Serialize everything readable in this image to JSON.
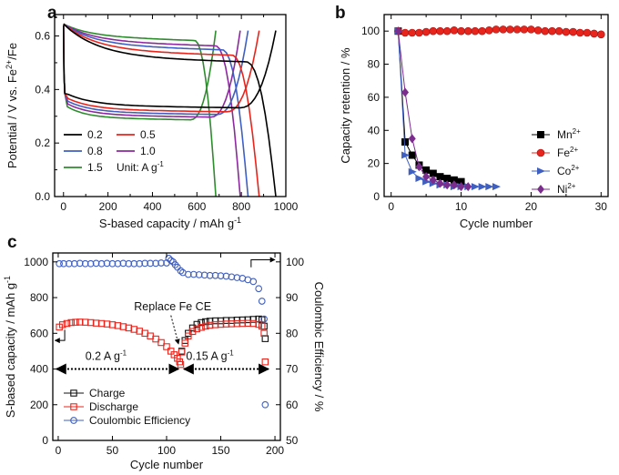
{
  "chart_data": [
    {
      "panel": "a",
      "type": "line",
      "xlabel": "S-based capacity / mAh g",
      "xlabel_sup": "-1",
      "ylabel_prefix": "Potential / V vs. Fe",
      "ylabel_sup": "2+",
      "ylabel_suffix": "/Fe",
      "xlim": [
        -40,
        1000
      ],
      "ylim": [
        0.0,
        0.68
      ],
      "xticks": [
        0,
        100,
        200,
        300,
        400,
        500,
        600,
        700,
        800,
        900,
        1000
      ],
      "xticklabels": [
        "0",
        "",
        "200",
        "",
        "400",
        "",
        "600",
        "",
        "800",
        "",
        "1000"
      ],
      "yticks": [
        0.0,
        0.1,
        0.2,
        0.3,
        0.4,
        0.5,
        0.6
      ],
      "yticklabels": [
        "0.0",
        "",
        "0.2",
        "",
        "0.4",
        "",
        "0.6"
      ],
      "legend_unit_prefix": "Unit: A g",
      "legend_unit_sup": "-1",
      "series": [
        {
          "name": "0.2",
          "color": "#000000",
          "cap": 955,
          "charge_plateau": 0.52,
          "discharge_plateau": 0.33
        },
        {
          "name": "0.5",
          "color": "#e8251d",
          "cap": 880,
          "charge_plateau": 0.545,
          "discharge_plateau": 0.315
        },
        {
          "name": "0.8",
          "color": "#3f5fc1",
          "cap": 830,
          "charge_plateau": 0.565,
          "discharge_plateau": 0.305
        },
        {
          "name": "1.0",
          "color": "#8a2a9c",
          "cap": 795,
          "charge_plateau": 0.58,
          "discharge_plateau": 0.295
        },
        {
          "name": "1.5",
          "color": "#2e8b2e",
          "cap": 685,
          "charge_plateau": 0.6,
          "discharge_plateau": 0.285
        }
      ]
    },
    {
      "panel": "b",
      "type": "line",
      "xlabel": "Cycle number",
      "ylabel": "Capacity retention / %",
      "xlim": [
        -1,
        31
      ],
      "ylim": [
        0,
        110
      ],
      "xticks": [
        0,
        5,
        10,
        15,
        20,
        25,
        30
      ],
      "xticklabels": [
        "0",
        "",
        "10",
        "",
        "20",
        "",
        "30"
      ],
      "yticks": [
        0,
        20,
        40,
        60,
        80,
        100
      ],
      "yticklabels": [
        "0",
        "20",
        "40",
        "60",
        "80",
        "100"
      ],
      "series": [
        {
          "name": "Mn",
          "sup": "2+",
          "color": "#000000",
          "marker": "square",
          "x": [
            1,
            2,
            3,
            4,
            5,
            6,
            7,
            8,
            9,
            10
          ],
          "y": [
            100,
            33,
            25,
            19,
            16,
            14,
            12,
            11,
            10,
            9
          ]
        },
        {
          "name": "Fe",
          "sup": "2+",
          "color": "#e8251d",
          "marker": "circle",
          "x": [
            1,
            2,
            3,
            4,
            5,
            6,
            7,
            8,
            9,
            10,
            11,
            12,
            13,
            14,
            15,
            16,
            17,
            18,
            19,
            20,
            21,
            22,
            23,
            24,
            25,
            26,
            27,
            28,
            29,
            30
          ],
          "y": [
            100,
            99,
            99,
            99,
            99.5,
            100,
            100,
            100,
            100.5,
            100,
            100,
            100,
            100,
            100.5,
            101,
            101,
            101,
            101,
            101,
            101,
            100.5,
            100,
            100,
            100,
            99.5,
            99.5,
            99,
            99,
            98.5,
            98
          ]
        },
        {
          "name": "Co",
          "sup": "2+",
          "color": "#3f5fc1",
          "marker": "triangle-right",
          "x": [
            1,
            2,
            3,
            4,
            5,
            6,
            7,
            8,
            9,
            10,
            11,
            12,
            13,
            14,
            15
          ],
          "y": [
            100,
            25,
            15,
            11,
            9,
            8,
            7,
            7,
            6,
            6,
            6,
            6,
            6,
            6,
            6
          ]
        },
        {
          "name": "Ni",
          "sup": "2+",
          "color": "#7b2d8e",
          "marker": "diamond",
          "x": [
            1,
            2,
            3,
            4,
            5,
            6,
            7,
            8,
            9,
            10,
            11
          ],
          "y": [
            100,
            63,
            35,
            18,
            12,
            10,
            8,
            7,
            7,
            6,
            6
          ]
        }
      ]
    },
    {
      "panel": "c",
      "type": "scatter",
      "xlabel": "Cycle number",
      "ylabel_left": "S-based capacity / mAh g",
      "ylabel_left_sup": "-1",
      "ylabel_right": "Coulombic Efficiency / %",
      "xlim": [
        -5,
        205
      ],
      "ylim_left": [
        0,
        1050
      ],
      "ylim_right": [
        50,
        102.5
      ],
      "xticks": [
        0,
        50,
        100,
        150,
        200
      ],
      "xticklabels": [
        "0",
        "50",
        "100",
        "150",
        "200"
      ],
      "yticks_left": [
        0,
        200,
        400,
        600,
        800,
        1000
      ],
      "yticklabels_left": [
        "0",
        "200",
        "400",
        "600",
        "800",
        "1000"
      ],
      "yticks_right": [
        50,
        60,
        70,
        80,
        90,
        100
      ],
      "yticklabels_right": [
        "50",
        "60",
        "70",
        "80",
        "90",
        "100"
      ],
      "annotations": {
        "replace": "Replace Fe CE",
        "rate1_prefix": "0.2 A g",
        "rate1_sup": "-1",
        "rate2_prefix": "0.15 A g",
        "rate2_sup": "-1"
      },
      "series": [
        {
          "name": "Charge",
          "color": "#111111",
          "marker": "square-open",
          "axis": "left",
          "x": [
            114,
            117,
            120,
            124,
            128,
            132,
            136,
            140,
            145,
            150,
            155,
            160,
            165,
            170,
            175,
            180,
            185,
            188,
            190,
            191
          ],
          "y": [
            500,
            560,
            600,
            630,
            650,
            660,
            665,
            668,
            670,
            670,
            672,
            672,
            674,
            675,
            676,
            678,
            680,
            676,
            640,
            570
          ]
        },
        {
          "name": "Discharge",
          "color": "#e8251d",
          "marker": "square-open",
          "axis": "left",
          "x": [
            1,
            4,
            8,
            12,
            16,
            20,
            25,
            30,
            35,
            40,
            45,
            50,
            55,
            60,
            65,
            70,
            75,
            80,
            85,
            90,
            95,
            100,
            104,
            107,
            110,
            112,
            113,
            114,
            117,
            120,
            124,
            128,
            132,
            136,
            140,
            145,
            150,
            155,
            160,
            165,
            170,
            175,
            180,
            185,
            188,
            190,
            191
          ],
          "y": [
            635,
            648,
            655,
            660,
            662,
            663,
            662,
            660,
            657,
            655,
            652,
            648,
            643,
            637,
            630,
            622,
            612,
            600,
            585,
            568,
            548,
            525,
            500,
            480,
            460,
            440,
            425,
            495,
            545,
            585,
            610,
            625,
            633,
            640,
            645,
            648,
            650,
            652,
            653,
            654,
            655,
            656,
            655,
            650,
            640,
            600,
            440
          ]
        },
        {
          "name": "Coulombic Efficiency",
          "color": "#3f5fc1",
          "marker": "circle-open",
          "axis": "right",
          "x": [
            1,
            5,
            10,
            15,
            20,
            25,
            30,
            35,
            40,
            45,
            50,
            55,
            60,
            65,
            70,
            75,
            80,
            85,
            90,
            95,
            100,
            102,
            104,
            106,
            108,
            110,
            113,
            115,
            120,
            125,
            130,
            135,
            140,
            145,
            150,
            155,
            160,
            165,
            170,
            175,
            180,
            185,
            188,
            190,
            191
          ],
          "y": [
            99.5,
            99.5,
            99.5,
            99.5,
            99.6,
            99.5,
            99.5,
            99.6,
            99.5,
            99.6,
            99.5,
            99.5,
            99.6,
            99.5,
            99.5,
            99.5,
            99.6,
            99.6,
            99.6,
            99.7,
            99.7,
            101,
            100.4,
            100,
            99.2,
            98.5,
            97.5,
            97,
            96.5,
            96.5,
            96.4,
            96.3,
            96.2,
            96.2,
            96.1,
            96.0,
            95.8,
            95.6,
            95.4,
            95.0,
            94.5,
            92.5,
            89,
            84,
            60
          ]
        }
      ]
    }
  ]
}
